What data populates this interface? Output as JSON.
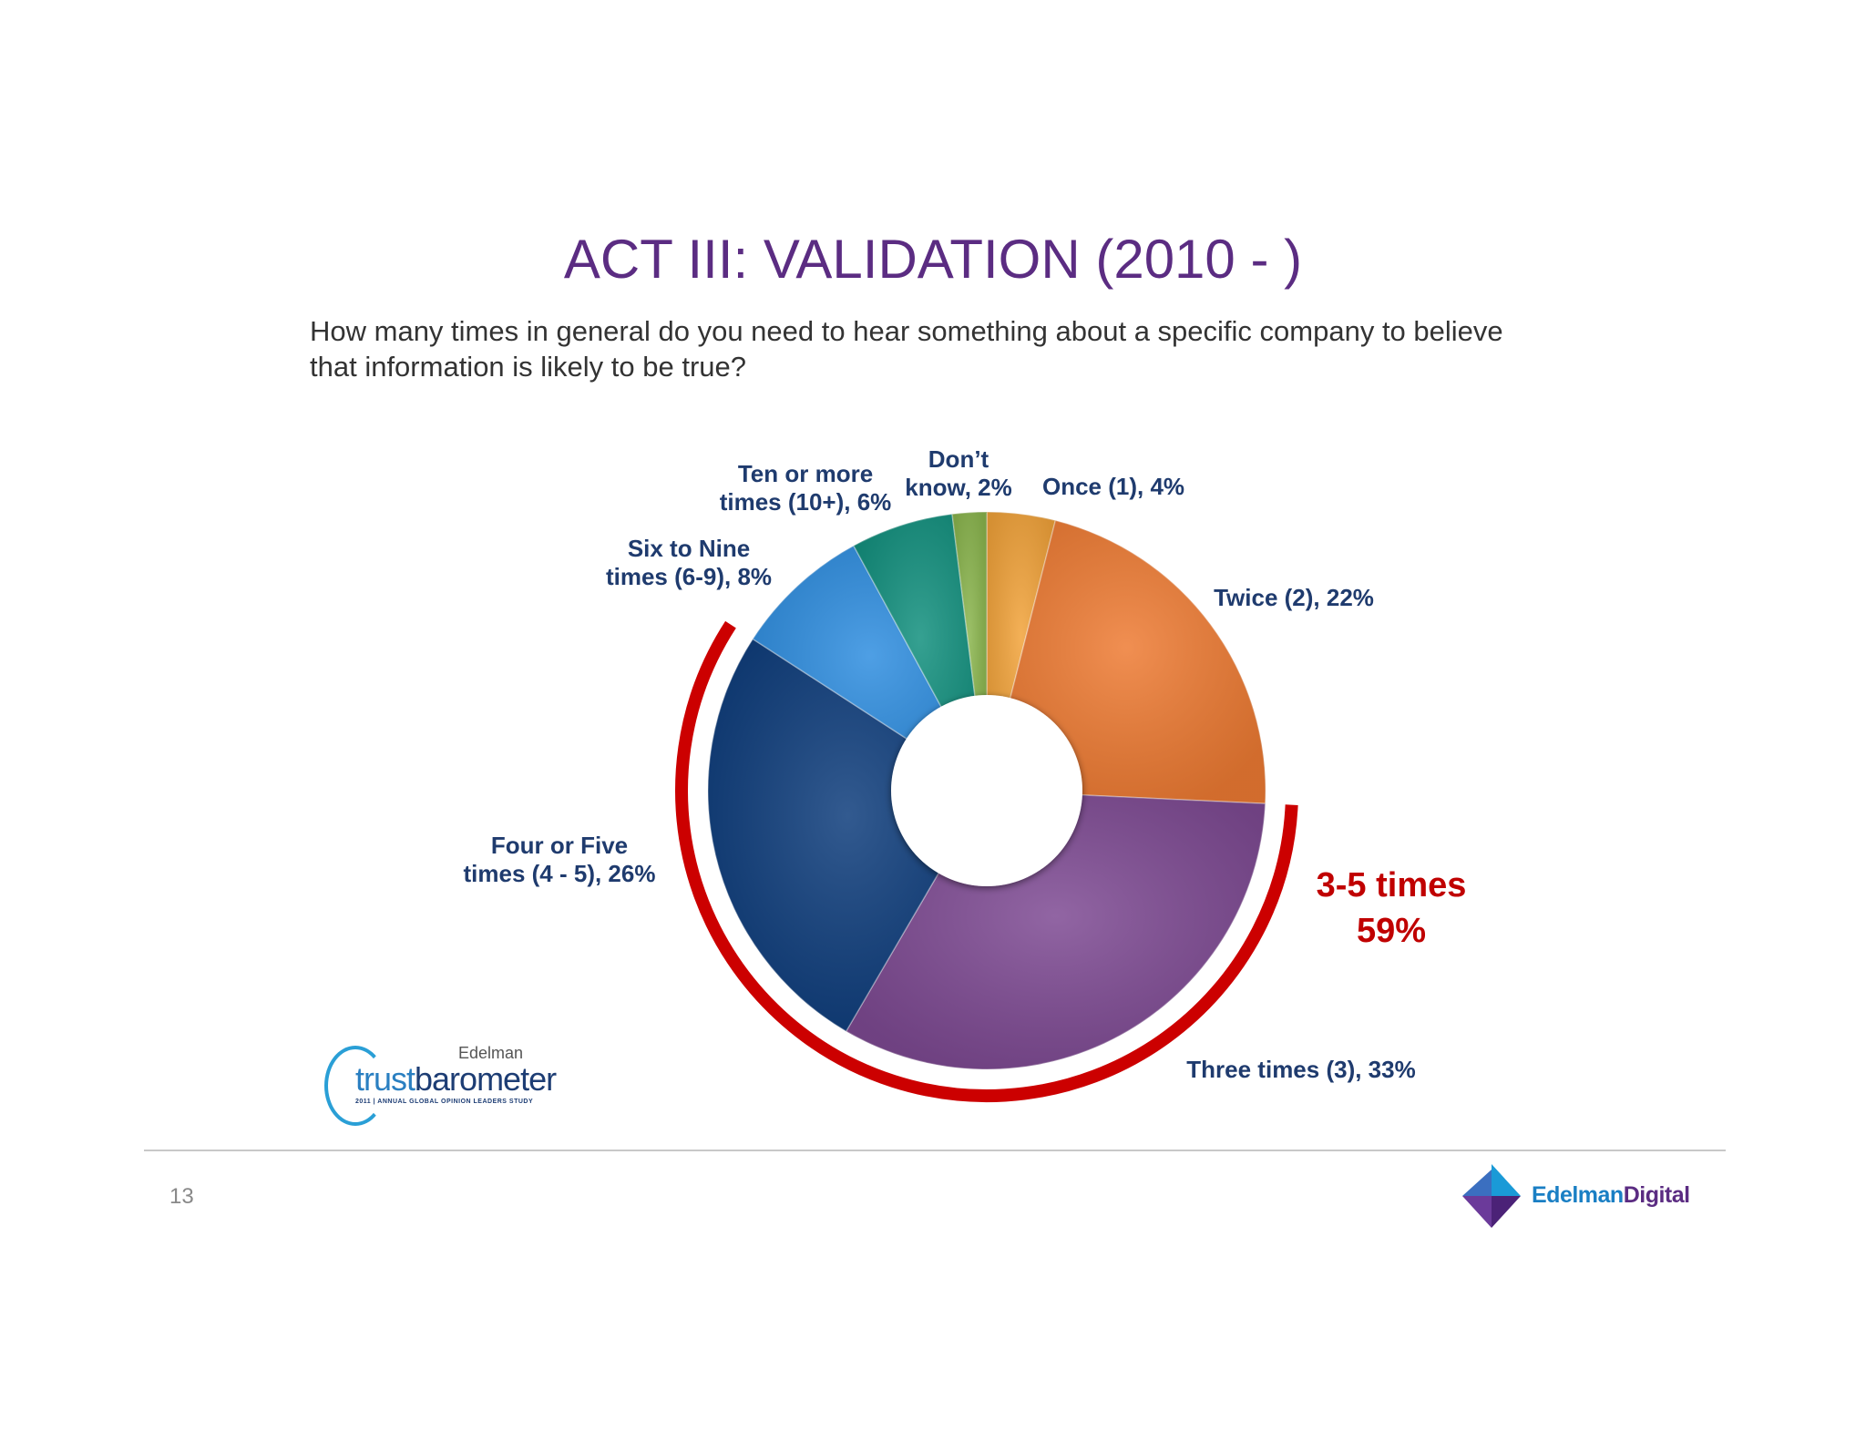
{
  "slide": {
    "title": "ACT III: VALIDATION (2010 - )",
    "question_line1": "How many times in general do you need to hear something about a specific company to believe",
    "question_line2": "that information is likely to be true?",
    "page_number": "13"
  },
  "chart_data": {
    "type": "pie",
    "variant": "donut",
    "slices": [
      {
        "label_lines": [
          "Once (1), 4%"
        ],
        "value": 4,
        "color": "#f2a33a"
      },
      {
        "label_lines": [
          "Twice (2), 22%"
        ],
        "value": 22,
        "color": "#ee7b33"
      },
      {
        "label_lines": [
          "Three times (3), 33%"
        ],
        "value": 33,
        "color": "#7e4a93"
      },
      {
        "label_lines": [
          "Four or Five",
          "times (4 - 5), 26%"
        ],
        "value": 26,
        "color": "#0e3d7c"
      },
      {
        "label_lines": [
          "Six to Nine",
          "times (6-9), 8%"
        ],
        "value": 8,
        "color": "#2f8ee0"
      },
      {
        "label_lines": [
          "Ten or more",
          "times (10+), 6%"
        ],
        "value": 6,
        "color": "#12907e"
      },
      {
        "label_lines": [
          "Don’t",
          "know, 2%"
        ],
        "value": 2,
        "color": "#8ab54d"
      }
    ],
    "start_angle_deg": 0,
    "direction": "clockwise",
    "highlight": {
      "label_lines": [
        "3-5 times",
        "59%"
      ],
      "value": 59,
      "color": "#cc0000",
      "covers": [
        "Three times (3), 33%",
        "Four or Five times (4 - 5), 26%"
      ]
    },
    "legend": "none"
  },
  "logos": {
    "trustbarometer": {
      "brand": "Edelman",
      "word_trust": "trust",
      "word_barometer": "barometer",
      "subtitle": "2011 | ANNUAL GLOBAL OPINION LEADERS STUDY"
    },
    "edelman_digital": {
      "word_edelman": "Edelman",
      "word_digital": "Digital"
    }
  },
  "colors": {
    "title": "#5b2c82",
    "label": "#1f3b6e",
    "highlight": "#cc0000"
  }
}
